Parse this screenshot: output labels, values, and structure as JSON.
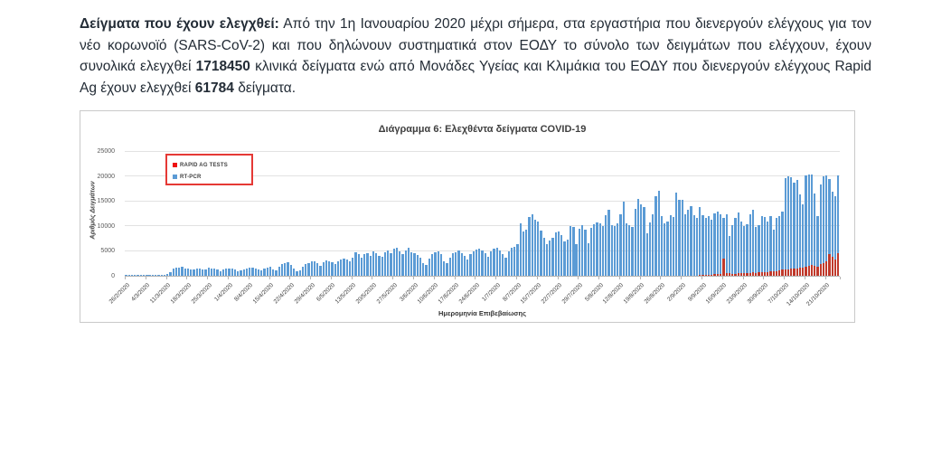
{
  "paragraph": {
    "lead_bold": "Δείγματα που έχουν ελεγχθεί:",
    "part1": " Από την 1η Ιανουαρίου 2020 μέχρι σήμερα, στα εργαστήρια που διενεργούν ελέγχους για τον νέο κορωνοϊό (SARS-CoV-2) και που δηλώνουν συστηματικά στον ΕΟΔΥ το σύνολο των δειγμάτων που ελέγχουν, έχουν συνολικά ελεγχθεί ",
    "total_pcr": "1718450",
    "part2": " κλινικά δείγματα ενώ από Μονάδες Υγείας και Κλιμάκια του ΕΟΔΥ που διενεργούν ελέγχους Rapid Ag έχουν ελεγχθεί ",
    "total_rapid": "61784",
    "part3": " δείγματα."
  },
  "chart": {
    "title": "Διάγραμμα 6: Ελεχθέντα δείγματα COVID-19",
    "ylabel": "Αριθμός Δειγμάτων",
    "xlabel": "Ημερομηνία Επιβεβαίωσης",
    "colors": {
      "pcr_blue": "#5b9bd5",
      "rapid_red": "#c0392b",
      "legend_border": "#e53935"
    }
  },
  "chart_data": {
    "type": "bar",
    "title": "Διάγραμμα 6: Ελεχθέντα δείγματα COVID-19",
    "xlabel": "Ημερομηνία Επιβεβαίωσης",
    "ylabel": "Αριθμός Δειγμάτων",
    "ylim": [
      0,
      25000
    ],
    "yticks": [
      0,
      5000,
      10000,
      15000,
      20000,
      25000
    ],
    "grid": true,
    "legend_position": "top-left",
    "x_start": "26/2/2020",
    "x_end": "25/10/2020",
    "tick_interval_days": 7,
    "x_tick_labels": [
      "26/2/2020",
      "4/3/2020",
      "11/3/2020",
      "18/3/2020",
      "25/3/2020",
      "1/4/2020",
      "8/4/2020",
      "15/4/2020",
      "22/4/2020",
      "29/4/2020",
      "6/5/2020",
      "13/5/2020",
      "20/5/2020",
      "27/5/2020",
      "3/6/2020",
      "10/6/2020",
      "17/6/2020",
      "24/6/2020",
      "1/7/2020",
      "8/7/2020",
      "15/7/2020",
      "22/7/2020",
      "29/7/2020",
      "5/8/2020",
      "12/8/2020",
      "19/8/2020",
      "26/8/2020",
      "2/9/2020",
      "9/9/2020",
      "16/9/2020",
      "23/9/2020",
      "30/9/2020",
      "7/10/2020",
      "14/10/2020",
      "21/10/2020"
    ],
    "series": [
      {
        "name": "RT-PCR",
        "color": "#5b9bd5",
        "values": [
          20,
          35,
          25,
          40,
          30,
          45,
          50,
          60,
          80,
          70,
          100,
          120,
          90,
          110,
          300,
          700,
          1500,
          1700,
          1600,
          1800,
          1400,
          1500,
          1300,
          1200,
          1400,
          1500,
          1350,
          1250,
          1600,
          1500,
          1400,
          1200,
          1000,
          1300,
          1450,
          1550,
          1400,
          1200,
          1000,
          1100,
          1350,
          1500,
          1600,
          1700,
          1500,
          1300,
          1100,
          1400,
          1650,
          1800,
          1200,
          1100,
          1900,
          2300,
          2600,
          2700,
          2200,
          1400,
          900,
          1100,
          1900,
          2400,
          2600,
          2900,
          3000,
          2500,
          2000,
          2700,
          3100,
          2900,
          2700,
          2400,
          2900,
          3300,
          3500,
          3200,
          3000,
          3600,
          4800,
          4300,
          3700,
          4400,
          4600,
          4100,
          5000,
          4500,
          4100,
          3800,
          4700,
          5200,
          4500,
          5500,
          5700,
          4900,
          4300,
          5100,
          5600,
          4800,
          4600,
          4200,
          3700,
          2600,
          2200,
          3400,
          4300,
          4700,
          5000,
          4400,
          3000,
          2500,
          3700,
          4500,
          4800,
          5200,
          4600,
          4000,
          3300,
          4400,
          5000,
          5300,
          5500,
          5100,
          4500,
          3800,
          5000,
          5400,
          5600,
          5200,
          4400,
          3700,
          5000,
          5600,
          5800,
          6300,
          10500,
          8900,
          9300,
          11800,
          12500,
          11300,
          10900,
          9100,
          7700,
          6400,
          7100,
          7700,
          8700,
          8900,
          8300,
          7000,
          7300,
          10000,
          9900,
          6400,
          9500,
          10200,
          9400,
          6600,
          9700,
          10400,
          10700,
          10500,
          10000,
          12200,
          13300,
          10300,
          10100,
          10500,
          12500,
          15000,
          10500,
          10200,
          9800,
          13500,
          15500,
          14500,
          13800,
          8600,
          10700,
          12500,
          16000,
          17100,
          12000,
          10500,
          11000,
          12300,
          11800,
          16700,
          15400,
          15300,
          12500,
          13300,
          14000,
          12200,
          11600,
          13800,
          12300,
          11700,
          12100,
          11400,
          12600,
          13000,
          12400,
          11600,
          12400,
          8100,
          10200,
          11600,
          12800,
          11000,
          10000,
          10400,
          12400,
          13300,
          9900,
          10300,
          12100,
          11800,
          10900,
          12000,
          9400,
          11600,
          12100,
          13000,
          19800,
          20100,
          19900,
          18800,
          19300,
          16500,
          14500,
          20300,
          20500,
          20400,
          16600,
          12100,
          18500,
          20000,
          20200,
          19500,
          17000,
          16000,
          20200
        ]
      },
      {
        "name": "RAPID AG TESTS",
        "color": "#c0392b",
        "values": [
          0,
          0,
          0,
          0,
          0,
          0,
          0,
          0,
          0,
          0,
          0,
          0,
          0,
          0,
          0,
          0,
          0,
          0,
          0,
          0,
          0,
          0,
          0,
          0,
          0,
          0,
          0,
          0,
          0,
          0,
          0,
          0,
          0,
          0,
          0,
          0,
          0,
          0,
          0,
          0,
          0,
          0,
          0,
          0,
          0,
          0,
          0,
          0,
          0,
          0,
          0,
          0,
          0,
          0,
          0,
          0,
          0,
          0,
          0,
          0,
          0,
          0,
          0,
          0,
          0,
          0,
          0,
          0,
          0,
          0,
          0,
          0,
          0,
          0,
          0,
          0,
          0,
          0,
          0,
          0,
          0,
          0,
          0,
          0,
          0,
          0,
          0,
          0,
          0,
          0,
          0,
          0,
          0,
          0,
          0,
          0,
          0,
          0,
          0,
          0,
          0,
          0,
          0,
          0,
          0,
          0,
          0,
          0,
          0,
          0,
          0,
          0,
          0,
          0,
          0,
          0,
          0,
          0,
          0,
          0,
          0,
          0,
          0,
          0,
          0,
          0,
          0,
          0,
          0,
          0,
          0,
          0,
          0,
          0,
          0,
          0,
          0,
          0,
          0,
          0,
          0,
          0,
          0,
          0,
          0,
          0,
          0,
          0,
          0,
          0,
          0,
          0,
          0,
          0,
          0,
          0,
          0,
          0,
          0,
          0,
          0,
          0,
          0,
          0,
          0,
          0,
          0,
          0,
          0,
          0,
          0,
          0,
          0,
          0,
          0,
          0,
          0,
          0,
          0,
          0,
          0,
          0,
          0,
          0,
          0,
          0,
          0,
          0,
          0,
          0,
          0,
          0,
          0,
          0,
          0,
          100,
          150,
          200,
          250,
          200,
          300,
          350,
          400,
          3500,
          600,
          500,
          450,
          400,
          500,
          550,
          500,
          550,
          600,
          650,
          600,
          700,
          750,
          800,
          750,
          900,
          850,
          1000,
          1100,
          1200,
          1300,
          1200,
          1400,
          1500,
          1400,
          1600,
          1700,
          1800,
          2000,
          2200,
          2100,
          1900,
          2400,
          2600,
          2900,
          4300,
          3800,
          3300,
          4500
        ]
      }
    ]
  }
}
